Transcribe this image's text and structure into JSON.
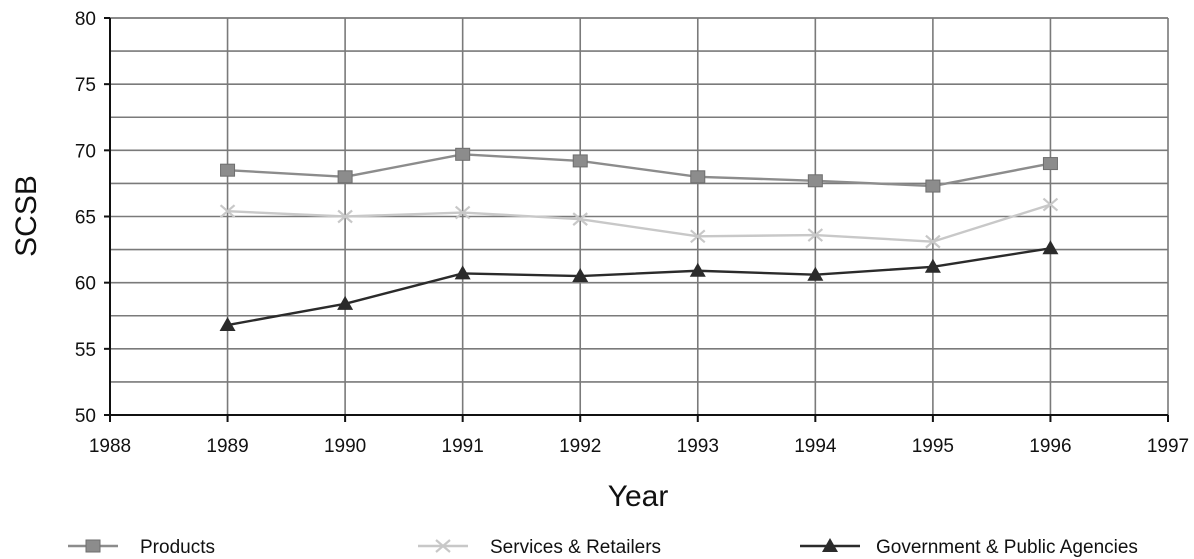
{
  "chart_data": {
    "type": "line",
    "title": "",
    "xlabel": "Year",
    "ylabel": "SCSB",
    "xlim": [
      1988,
      1997
    ],
    "ylim": [
      50,
      80
    ],
    "x_ticks": [
      "1988",
      "1989",
      "1990",
      "1991",
      "1992",
      "1993",
      "1994",
      "1995",
      "1996",
      "1997"
    ],
    "y_ticks": [
      "50",
      "55",
      "60",
      "65",
      "70",
      "75",
      "80"
    ],
    "y_minor_step": 2.5,
    "grid": true,
    "legend_position": "bottom",
    "x": [
      1989,
      1990,
      1991,
      1992,
      1993,
      1994,
      1995,
      1996
    ],
    "series": [
      {
        "name": "Products",
        "marker": "square",
        "color": "#8c8c8c",
        "values": [
          68.5,
          68.0,
          69.7,
          69.2,
          68.0,
          67.7,
          67.3,
          69.0
        ]
      },
      {
        "name": "Services & Retailers",
        "marker": "x",
        "color": "#c8c8c8",
        "values": [
          65.4,
          65.0,
          65.3,
          64.8,
          63.5,
          63.6,
          63.1,
          65.9
        ]
      },
      {
        "name": "Government & Public Agencies",
        "marker": "triangle",
        "color": "#2b2b2b",
        "values": [
          56.8,
          58.4,
          60.7,
          60.5,
          60.9,
          60.6,
          61.2,
          62.6
        ]
      }
    ]
  }
}
